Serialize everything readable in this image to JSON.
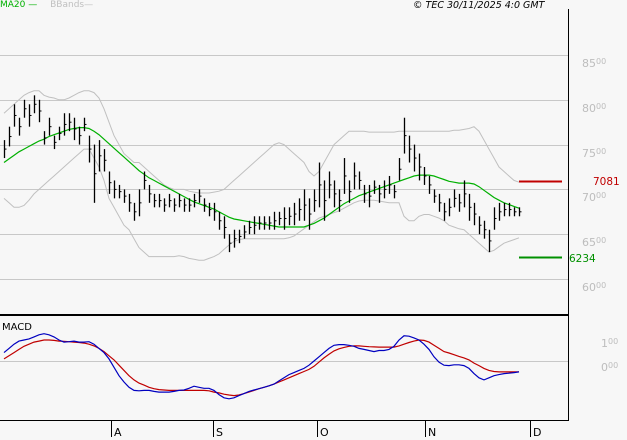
{
  "legend": {
    "ma_label": "MA20",
    "ma_dash": "—",
    "bb_label": "BBands",
    "bb_dash": "—"
  },
  "header": {
    "copyright": "© TEC 30/11/2025 4:0 GMT"
  },
  "levels": {
    "resistance": {
      "value": "7081",
      "color": "#c00000"
    },
    "support": {
      "value": "6234",
      "color": "#009000"
    }
  },
  "colors": {
    "background": "#f7f7f7",
    "grid": "#c8c8c8",
    "ma20": "#00b000",
    "bbands": "#c0c0c0",
    "bars": "#000000",
    "macd": "#0000c0",
    "signal": "#c00000"
  },
  "macd_panel": {
    "title": "MACD",
    "ticks": [
      {
        "main": "1",
        "sup": "00"
      },
      {
        "main": "0",
        "sup": "00"
      }
    ]
  },
  "price_axis": [
    {
      "main": "85",
      "sup": "00"
    },
    {
      "main": "80",
      "sup": "00"
    },
    {
      "main": "75",
      "sup": "00"
    },
    {
      "main": "70",
      "sup": "00"
    },
    {
      "main": "65",
      "sup": "00"
    },
    {
      "main": "60",
      "sup": "00"
    }
  ],
  "x_axis": [
    "A",
    "S",
    "O",
    "N",
    "D"
  ],
  "chart_data": [
    {
      "type": "ohlc",
      "title": "Price with MA20 and Bollinger Bands",
      "xlabel": "",
      "ylabel": "",
      "ylim": [
        5800,
        8700
      ],
      "yticks": [
        6000,
        6500,
        7000,
        7500,
        8000,
        8500
      ],
      "xticks": [
        "A",
        "S",
        "O",
        "N",
        "D"
      ],
      "grid": true,
      "legend": [
        "MA20",
        "BBands"
      ],
      "annotations": [
        {
          "label": "7081",
          "value": 7081,
          "color": "#c00000"
        },
        {
          "label": "6234",
          "value": 6234,
          "color": "#009000"
        }
      ],
      "bars_hl": [
        [
          7350,
          7550
        ],
        [
          7480,
          7700
        ],
        [
          7700,
          7950
        ],
        [
          7600,
          7800
        ],
        [
          7800,
          8000
        ],
        [
          7700,
          7950
        ],
        [
          7850,
          8050
        ],
        [
          7750,
          8000
        ],
        [
          7500,
          7650
        ],
        [
          7600,
          7800
        ],
        [
          7450,
          7600
        ],
        [
          7550,
          7700
        ],
        [
          7600,
          7850
        ],
        [
          7650,
          7850
        ],
        [
          7550,
          7800
        ],
        [
          7500,
          7700
        ],
        [
          7650,
          7800
        ],
        [
          7300,
          7600
        ],
        [
          6850,
          7500
        ],
        [
          7200,
          7550
        ],
        [
          7200,
          7450
        ],
        [
          6950,
          7200
        ],
        [
          6900,
          7100
        ],
        [
          6900,
          7050
        ],
        [
          6850,
          7000
        ],
        [
          6750,
          6950
        ],
        [
          6650,
          6850
        ],
        [
          6700,
          7000
        ],
        [
          7000,
          7200
        ],
        [
          6850,
          7050
        ],
        [
          6800,
          6950
        ],
        [
          6800,
          6950
        ],
        [
          6750,
          6900
        ],
        [
          6800,
          6950
        ],
        [
          6750,
          6900
        ],
        [
          6800,
          6950
        ],
        [
          6750,
          6900
        ],
        [
          6750,
          6900
        ],
        [
          6800,
          6950
        ],
        [
          6850,
          7000
        ],
        [
          6750,
          6900
        ],
        [
          6700,
          6850
        ],
        [
          6650,
          6850
        ],
        [
          6550,
          6750
        ],
        [
          6450,
          6700
        ],
        [
          6300,
          6500
        ],
        [
          6350,
          6550
        ],
        [
          6400,
          6550
        ],
        [
          6450,
          6600
        ],
        [
          6500,
          6650
        ],
        [
          6500,
          6700
        ],
        [
          6550,
          6700
        ],
        [
          6550,
          6700
        ],
        [
          6550,
          6700
        ],
        [
          6550,
          6750
        ],
        [
          6600,
          6750
        ],
        [
          6550,
          6800
        ],
        [
          6600,
          6800
        ],
        [
          6600,
          6850
        ],
        [
          6650,
          6900
        ],
        [
          6650,
          7000
        ],
        [
          6550,
          6900
        ],
        [
          6750,
          7000
        ],
        [
          6800,
          7300
        ],
        [
          6650,
          7100
        ],
        [
          6900,
          7200
        ],
        [
          6800,
          7100
        ],
        [
          6750,
          7000
        ],
        [
          6950,
          7350
        ],
        [
          6850,
          7100
        ],
        [
          7000,
          7300
        ],
        [
          7000,
          7200
        ],
        [
          6850,
          7050
        ],
        [
          6800,
          7050
        ],
        [
          6950,
          7100
        ],
        [
          6850,
          7050
        ],
        [
          6900,
          7100
        ],
        [
          6950,
          7150
        ],
        [
          6900,
          7050
        ],
        [
          7100,
          7350
        ],
        [
          7400,
          7800
        ],
        [
          7300,
          7600
        ],
        [
          7200,
          7500
        ],
        [
          7100,
          7400
        ],
        [
          7050,
          7250
        ],
        [
          6950,
          7150
        ],
        [
          6850,
          7000
        ],
        [
          6750,
          6950
        ],
        [
          6650,
          6850
        ],
        [
          6700,
          6900
        ],
        [
          6800,
          7000
        ],
        [
          6750,
          6950
        ],
        [
          6800,
          7100
        ],
        [
          6650,
          6950
        ],
        [
          6600,
          6850
        ],
        [
          6500,
          6700
        ],
        [
          6450,
          6650
        ],
        [
          6300,
          6550
        ],
        [
          6550,
          6800
        ],
        [
          6650,
          6850
        ],
        [
          6700,
          6850
        ],
        [
          6700,
          6850
        ],
        [
          6700,
          6800
        ],
        [
          6700,
          6800
        ]
      ],
      "ma20": [
        7300,
        7340,
        7380,
        7420,
        7450,
        7480,
        7510,
        7540,
        7560,
        7590,
        7610,
        7630,
        7650,
        7670,
        7680,
        7690,
        7690,
        7680,
        7650,
        7610,
        7560,
        7510,
        7460,
        7410,
        7360,
        7310,
        7260,
        7210,
        7170,
        7130,
        7100,
        7070,
        7040,
        7010,
        6980,
        6950,
        6920,
        6890,
        6860,
        6840,
        6820,
        6800,
        6780,
        6750,
        6720,
        6690,
        6670,
        6660,
        6650,
        6640,
        6630,
        6620,
        6610,
        6600,
        6590,
        6580,
        6580,
        6580,
        6580,
        6580,
        6580,
        6600,
        6620,
        6650,
        6680,
        6720,
        6760,
        6800,
        6840,
        6870,
        6900,
        6930,
        6950,
        6970,
        6990,
        7010,
        7030,
        7050,
        7070,
        7090,
        7110,
        7130,
        7150,
        7160,
        7160,
        7160,
        7150,
        7130,
        7110,
        7090,
        7080,
        7070,
        7070,
        7070,
        7060,
        7030,
        6990,
        6950,
        6910,
        6880,
        6850,
        6830,
        6810,
        6790
      ],
      "bb_upper": [
        7850,
        7900,
        7950,
        8000,
        8050,
        8080,
        8100,
        8100,
        8050,
        8030,
        8020,
        8000,
        8000,
        8020,
        8050,
        8080,
        8100,
        8100,
        8080,
        8020,
        7900,
        7750,
        7600,
        7500,
        7400,
        7350,
        7300,
        7300,
        7250,
        7200,
        7150,
        7100,
        7050,
        7020,
        7000,
        7000,
        7000,
        6980,
        6970,
        6960,
        6960,
        6960,
        6970,
        6980,
        7000,
        7050,
        7100,
        7150,
        7200,
        7250,
        7300,
        7350,
        7400,
        7450,
        7500,
        7520,
        7500,
        7450,
        7400,
        7350,
        7300,
        7200,
        7150,
        7200,
        7300,
        7400,
        7500,
        7550,
        7600,
        7650,
        7650,
        7650,
        7650,
        7640,
        7640,
        7640,
        7640,
        7640,
        7640,
        7650,
        7650,
        7650,
        7650,
        7650,
        7650,
        7650,
        7650,
        7650,
        7650,
        7650,
        7660,
        7660,
        7670,
        7680,
        7700,
        7650,
        7550,
        7450,
        7350,
        7250,
        7200,
        7150,
        7100,
        7080
      ],
      "bb_lower": [
        6900,
        6850,
        6800,
        6800,
        6820,
        6880,
        6950,
        7000,
        7050,
        7100,
        7150,
        7200,
        7250,
        7300,
        7350,
        7400,
        7450,
        7450,
        7350,
        7250,
        7100,
        6900,
        6800,
        6700,
        6600,
        6550,
        6450,
        6350,
        6300,
        6250,
        6250,
        6250,
        6250,
        6250,
        6250,
        6260,
        6250,
        6230,
        6220,
        6210,
        6210,
        6230,
        6250,
        6280,
        6330,
        6380,
        6420,
        6440,
        6450,
        6450,
        6450,
        6450,
        6450,
        6450,
        6450,
        6450,
        6450,
        6460,
        6480,
        6520,
        6560,
        6600,
        6640,
        6680,
        6700,
        6720,
        6740,
        6760,
        6790,
        6820,
        6850,
        6870,
        6880,
        6880,
        6880,
        6870,
        6860,
        6850,
        6850,
        6850,
        6700,
        6650,
        6650,
        6700,
        6720,
        6720,
        6700,
        6680,
        6650,
        6600,
        6580,
        6560,
        6550,
        6500,
        6450,
        6400,
        6350,
        6300,
        6320,
        6360,
        6400,
        6420,
        6440,
        6460
      ]
    },
    {
      "type": "line",
      "title": "MACD",
      "ylim": [
        -210,
        150
      ],
      "yticks": [
        0,
        100
      ],
      "series": [
        {
          "name": "MACD",
          "color": "#0000c0",
          "values": [
            40,
            60,
            80,
            95,
            100,
            105,
            115,
            125,
            130,
            125,
            115,
            100,
            90,
            92,
            95,
            90,
            90,
            92,
            80,
            60,
            40,
            10,
            -30,
            -70,
            -100,
            -125,
            -140,
            -142,
            -140,
            -140,
            -145,
            -148,
            -148,
            -148,
            -145,
            -140,
            -138,
            -130,
            -120,
            -125,
            -130,
            -130,
            -140,
            -160,
            -175,
            -180,
            -175,
            -165,
            -155,
            -145,
            -138,
            -132,
            -125,
            -118,
            -110,
            -95,
            -80,
            -65,
            -55,
            -45,
            -35,
            -20,
            0,
            20,
            40,
            60,
            75,
            78,
            78,
            75,
            70,
            60,
            55,
            50,
            45,
            50,
            50,
            55,
            70,
            100,
            120,
            118,
            110,
            100,
            80,
            55,
            20,
            -5,
            -20,
            -22,
            -18,
            -18,
            -22,
            -35,
            -60,
            -80,
            -90,
            -80,
            -70,
            -65,
            -60,
            -58,
            -55,
            -52
          ]
        },
        {
          "name": "Signal",
          "color": "#c00000",
          "values": [
            10,
            25,
            40,
            55,
            70,
            80,
            90,
            95,
            100,
            100,
            98,
            95,
            94,
            92,
            90,
            88,
            85,
            80,
            72,
            60,
            45,
            25,
            5,
            -20,
            -45,
            -70,
            -90,
            -105,
            -115,
            -125,
            -132,
            -136,
            -138,
            -140,
            -140,
            -140,
            -140,
            -140,
            -140,
            -140,
            -140,
            -142,
            -148,
            -152,
            -158,
            -162,
            -165,
            -162,
            -155,
            -148,
            -140,
            -132,
            -125,
            -118,
            -110,
            -100,
            -90,
            -80,
            -70,
            -60,
            -50,
            -40,
            -25,
            -5,
            15,
            32,
            48,
            58,
            65,
            70,
            72,
            72,
            70,
            68,
            67,
            66,
            66,
            66,
            66,
            72,
            80,
            88,
            95,
            100,
            98,
            90,
            75,
            60,
            45,
            38,
            30,
            22,
            15,
            5,
            -10,
            -22,
            -35,
            -45,
            -50,
            -52,
            -52,
            -52,
            -52,
            -52
          ]
        }
      ]
    }
  ]
}
